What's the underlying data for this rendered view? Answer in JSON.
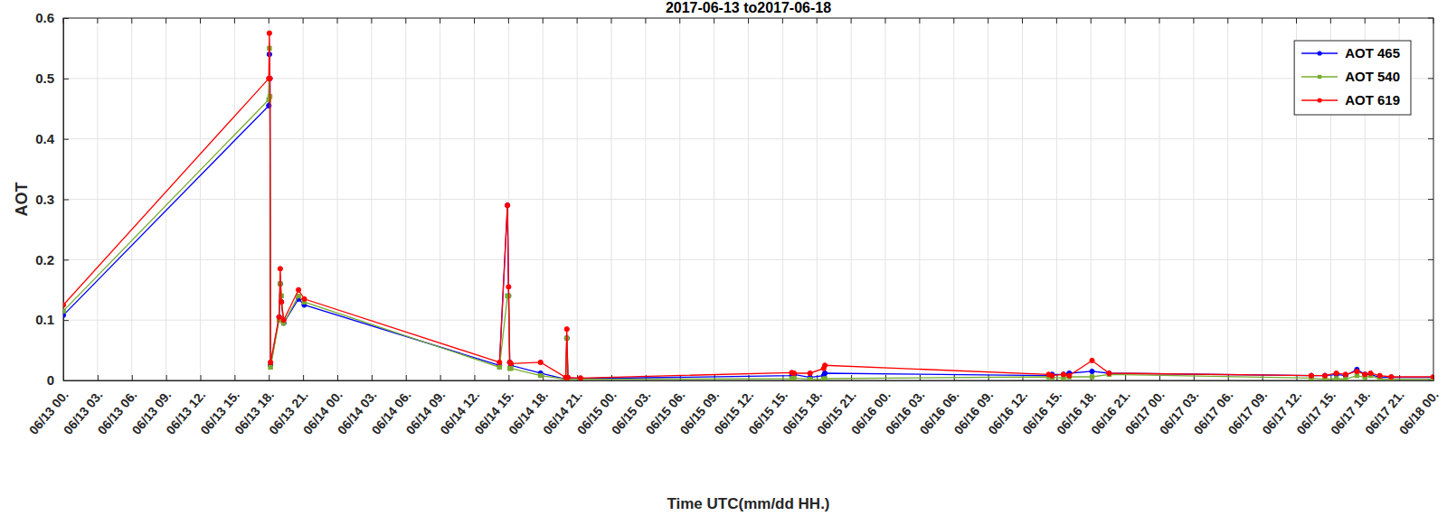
{
  "chart_data": {
    "type": "line",
    "title": "2017-06-13 to2017-06-18",
    "x_label": "Time UTC(mm/dd HH.)",
    "y_label": "AOT",
    "x": [
      0,
      18.0,
      18.05,
      18.1,
      18.15,
      18.9,
      19.0,
      19.1,
      19.3,
      20.6,
      21.1,
      38.2,
      38.9,
      39.0,
      39.1,
      39.2,
      41.8,
      44.0,
      44.1,
      44.2,
      45.3,
      63.8,
      64.0,
      65.4,
      66.6,
      66.7,
      86.3,
      86.6,
      87.6,
      88.1,
      90.1,
      91.6,
      109.3,
      110.5,
      111.5,
      112.3,
      113.3,
      114.0,
      114.5,
      115.3,
      116.3,
      120
    ],
    "series": [
      {
        "name": "AOT 465",
        "color": "#0000ff",
        "marker": "circle",
        "values": [
          0.108,
          0.455,
          0.54,
          0.5,
          0.025,
          0.105,
          0.16,
          0.13,
          0.095,
          0.135,
          0.125,
          0.025,
          0.29,
          0.14,
          0.03,
          0.025,
          0.012,
          0.002,
          0.07,
          0.003,
          0.003,
          0.008,
          0.01,
          0.005,
          0.008,
          0.012,
          0.008,
          0.01,
          0.01,
          0.012,
          0.015,
          0.012,
          0.008,
          0.008,
          0.01,
          0.008,
          0.018,
          0.01,
          0.01,
          0.005,
          0.005,
          0.005
        ]
      },
      {
        "name": "AOT 540",
        "color": "#77ac30",
        "marker": "square",
        "values": [
          0.115,
          0.465,
          0.55,
          0.47,
          0.022,
          0.1,
          0.16,
          0.14,
          0.095,
          0.14,
          0.13,
          0.022,
          0.14,
          0.14,
          0.02,
          0.02,
          0.008,
          0.002,
          0.07,
          0.002,
          0.002,
          0.003,
          0.004,
          0.002,
          0.002,
          0.003,
          0.006,
          0.005,
          0.004,
          0.006,
          0.006,
          0.01,
          0.004,
          0.002,
          0.003,
          0.002,
          0.008,
          0.005,
          0.008,
          0.002,
          0.002,
          0.002
        ]
      },
      {
        "name": "AOT 619",
        "color": "#ff0000",
        "marker": "circle",
        "values": [
          0.125,
          0.5,
          0.575,
          0.5,
          0.03,
          0.105,
          0.185,
          0.13,
          0.1,
          0.15,
          0.135,
          0.03,
          0.29,
          0.155,
          0.03,
          0.028,
          0.03,
          0.005,
          0.085,
          0.005,
          0.004,
          0.013,
          0.012,
          0.012,
          0.02,
          0.025,
          0.01,
          0.008,
          0.01,
          0.008,
          0.033,
          0.012,
          0.008,
          0.008,
          0.012,
          0.01,
          0.015,
          0.01,
          0.012,
          0.008,
          0.006,
          0.006
        ]
      }
    ],
    "xlim": [
      0,
      120
    ],
    "xticks": [
      {
        "value": 0,
        "label": "06/13 00."
      },
      {
        "value": 3,
        "label": "06/13 03."
      },
      {
        "value": 6,
        "label": "06/13 06."
      },
      {
        "value": 9,
        "label": "06/13 09."
      },
      {
        "value": 12,
        "label": "06/13 12."
      },
      {
        "value": 15,
        "label": "06/13 15."
      },
      {
        "value": 18,
        "label": "06/13 18."
      },
      {
        "value": 21,
        "label": "06/13 21."
      },
      {
        "value": 24,
        "label": "06/14 00."
      },
      {
        "value": 27,
        "label": "06/14 03."
      },
      {
        "value": 30,
        "label": "06/14 06."
      },
      {
        "value": 33,
        "label": "06/14 09."
      },
      {
        "value": 36,
        "label": "06/14 12."
      },
      {
        "value": 39,
        "label": "06/14 15."
      },
      {
        "value": 42,
        "label": "06/14 18."
      },
      {
        "value": 45,
        "label": "06/14 21."
      },
      {
        "value": 48,
        "label": "06/15 00."
      },
      {
        "value": 51,
        "label": "06/15 03."
      },
      {
        "value": 54,
        "label": "06/15 06."
      },
      {
        "value": 57,
        "label": "06/15 09."
      },
      {
        "value": 60,
        "label": "06/15 12."
      },
      {
        "value": 63,
        "label": "06/15 15."
      },
      {
        "value": 66,
        "label": "06/15 18."
      },
      {
        "value": 69,
        "label": "06/15 21."
      },
      {
        "value": 72,
        "label": "06/16 00."
      },
      {
        "value": 75,
        "label": "06/16 03."
      },
      {
        "value": 78,
        "label": "06/16 06."
      },
      {
        "value": 81,
        "label": "06/16 09."
      },
      {
        "value": 84,
        "label": "06/16 12."
      },
      {
        "value": 87,
        "label": "06/16 15."
      },
      {
        "value": 90,
        "label": "06/16 18."
      },
      {
        "value": 93,
        "label": "06/16 21."
      },
      {
        "value": 96,
        "label": "06/17 00."
      },
      {
        "value": 99,
        "label": "06/17 03."
      },
      {
        "value": 102,
        "label": "06/17 06."
      },
      {
        "value": 105,
        "label": "06/17 09."
      },
      {
        "value": 108,
        "label": "06/17 12."
      },
      {
        "value": 111,
        "label": "06/17 15."
      },
      {
        "value": 114,
        "label": "06/17 18."
      },
      {
        "value": 117,
        "label": "06/17 21."
      },
      {
        "value": 120,
        "label": "06/18 00."
      }
    ],
    "ylim": [
      0,
      0.6
    ],
    "yticks": [
      0,
      0.1,
      0.2,
      0.3,
      0.4,
      0.5,
      0.6
    ],
    "grid": true,
    "legend": "northeast"
  }
}
